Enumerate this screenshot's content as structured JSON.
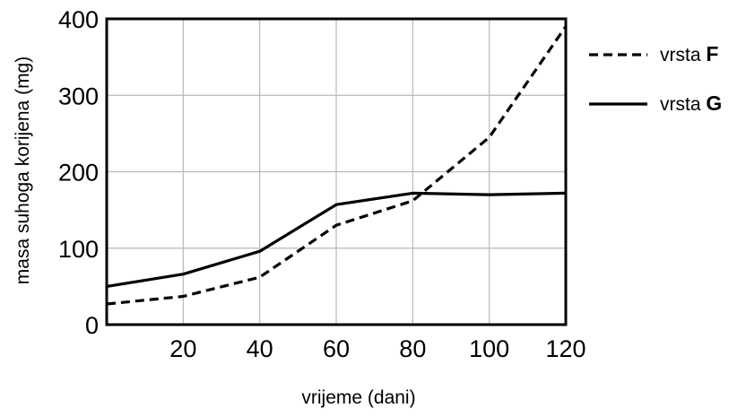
{
  "chart_data": {
    "type": "line",
    "xlabel": "vrijeme (dani)",
    "ylabel": "masa suhoga korijena (mg)",
    "xlim": [
      0,
      120
    ],
    "ylim": [
      0,
      400
    ],
    "x_ticks": [
      20,
      40,
      60,
      80,
      100,
      120
    ],
    "y_ticks": [
      0,
      100,
      200,
      300,
      400
    ],
    "grid": true,
    "legend_position": "top-right",
    "series": [
      {
        "name": "vrsta",
        "name_letter": "F",
        "line_style": "dashed",
        "color": "#000000",
        "x": [
          0,
          20,
          40,
          60,
          80,
          100,
          120
        ],
        "y": [
          27,
          37,
          62,
          130,
          162,
          245,
          390
        ]
      },
      {
        "name": "vrsta",
        "name_letter": "G",
        "line_style": "solid",
        "color": "#000000",
        "x": [
          0,
          20,
          40,
          60,
          80,
          100,
          120
        ],
        "y": [
          50,
          66,
          96,
          157,
          172,
          170,
          172
        ]
      }
    ]
  }
}
